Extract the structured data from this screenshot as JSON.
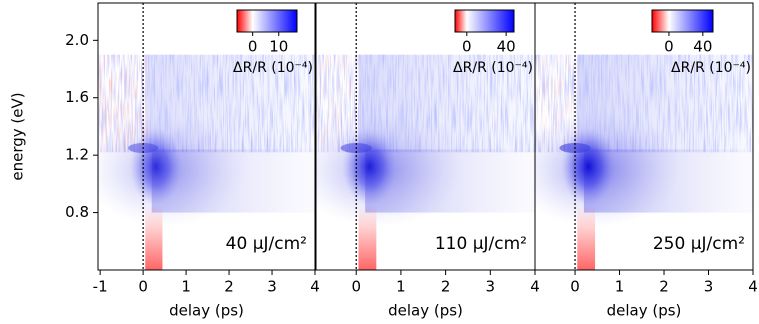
{
  "chart_data": [
    {
      "type": "heatmap",
      "xlabel": "delay (ps)",
      "ylabel": "energy (eV)",
      "xlim": [
        -1.05,
        4
      ],
      "xticks": [
        -1,
        0,
        1,
        2,
        3,
        4
      ],
      "ylim": [
        0.4,
        2.26
      ],
      "yticks": [
        0.8,
        1.2,
        1.6,
        {
          "value": 2,
          "label": "2.0"
        }
      ],
      "colorbar": {
        "label": "ΔR/R (10⁻⁴)",
        "lim": [
          -6,
          17
        ],
        "ticks": [
          0,
          10
        ]
      },
      "annotation": "40 μJ/cm²"
    },
    {
      "type": "heatmap",
      "xlabel": "delay (ps)",
      "xlim": [
        -0.9,
        4
      ],
      "xticks": [
        0,
        1,
        2,
        3,
        4
      ],
      "ylim": [
        0.4,
        2.26
      ],
      "colorbar": {
        "label": "ΔR/R (10⁻⁴)",
        "lim": [
          -12,
          48
        ],
        "ticks": [
          0,
          40
        ]
      },
      "annotation": "110 μJ/cm²"
    },
    {
      "type": "heatmap",
      "xlabel": "delay (ps)",
      "xlim": [
        -0.9,
        4
      ],
      "xticks": [
        0,
        1,
        2,
        3,
        4
      ],
      "ylim": [
        0.4,
        2.26
      ],
      "colorbar": {
        "label": "ΔR/R (10⁻⁴)",
        "lim": [
          -20,
          52
        ],
        "ticks": [
          0,
          40
        ]
      },
      "annotation": "250 μJ/cm²"
    }
  ]
}
